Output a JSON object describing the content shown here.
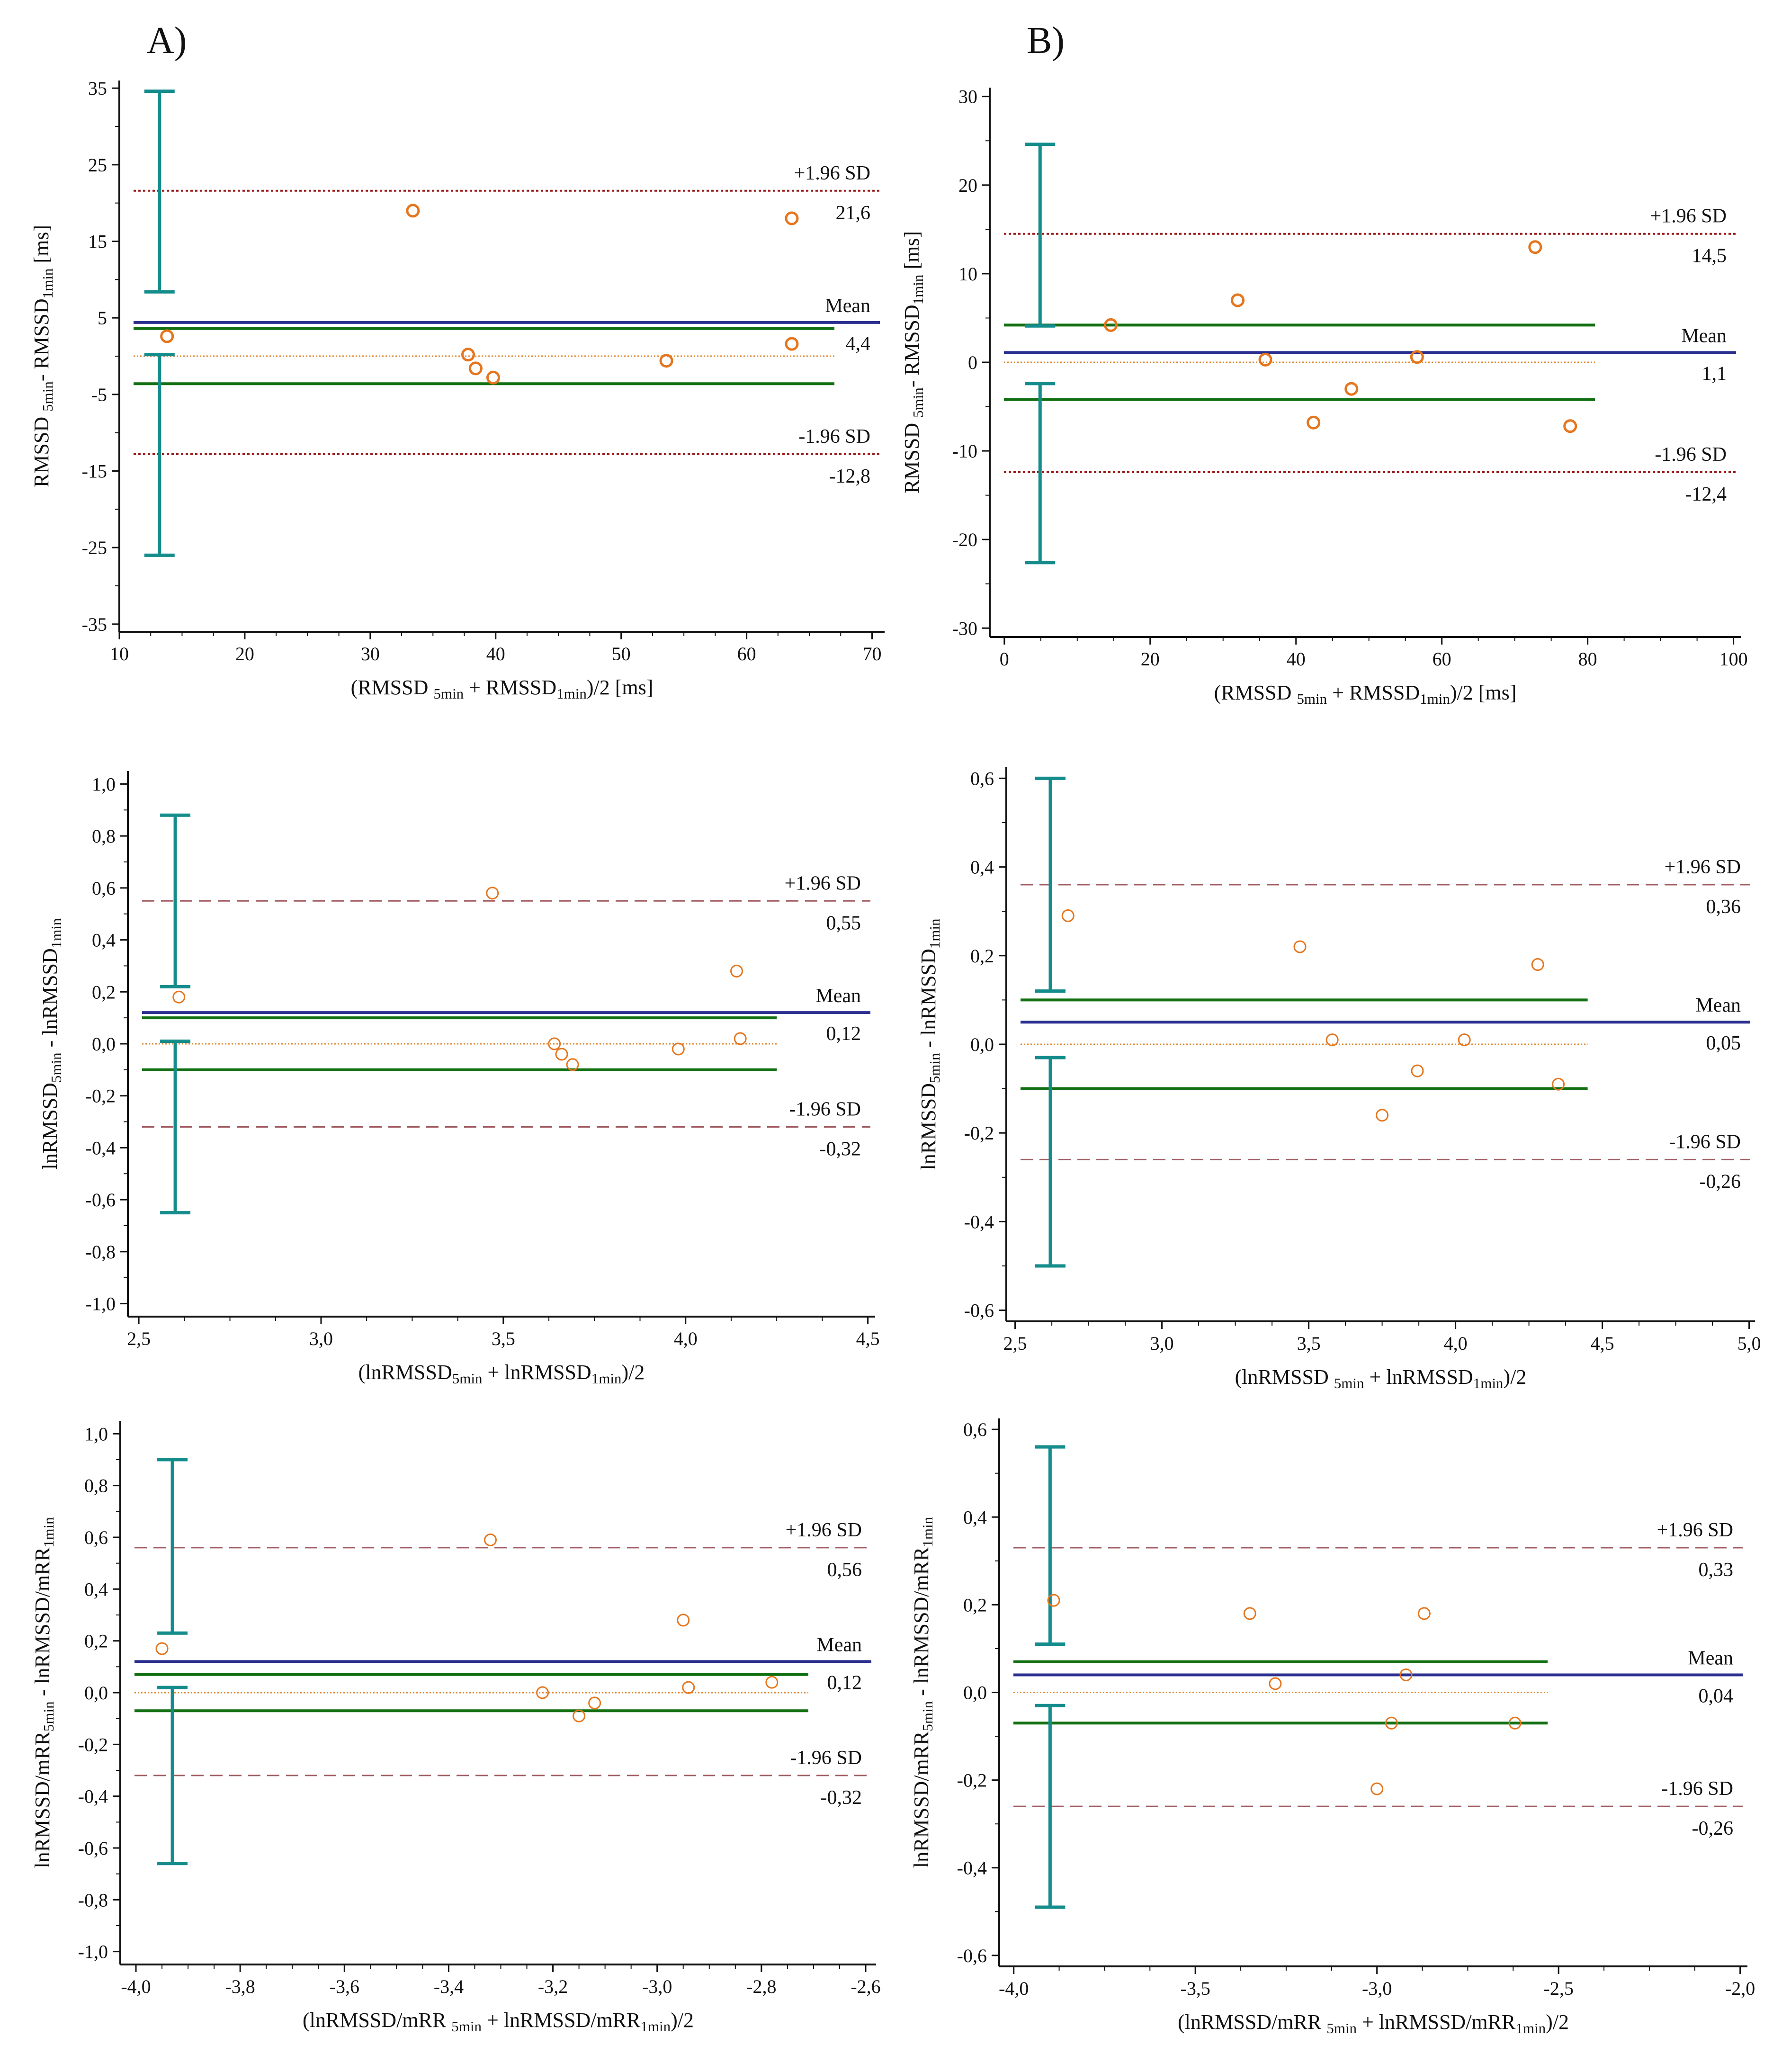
{
  "panel_labels": [
    "A)",
    "B)"
  ],
  "colors": {
    "mean_line": "#2b2f8f",
    "ci_line": "#127012",
    "loa_line": "#9b1b1b",
    "loa_dashed": "#a05c62",
    "zero_line": "#e0872e",
    "points": "#e5761e",
    "errorbar": "#158c8c",
    "axis": "#111111"
  },
  "chart_data": [
    {
      "type": "scatter",
      "title": "A)",
      "xlabel": {
        "pre": "(RMSSD ",
        "s1": "5min",
        "mid": " + RMSSD",
        "s2": "1min",
        "post": ")/2 [ms]"
      },
      "ylabel": {
        "pre": "RMSSD ",
        "s1": "5min",
        "mid": "- RMSSD",
        "s2": "1min",
        "post": " [ms]"
      },
      "xlim": [
        10,
        71
      ],
      "ylim": [
        -36,
        36
      ],
      "xticks": [
        10,
        20,
        30,
        40,
        50,
        60,
        70
      ],
      "xticklabels": [
        "10",
        "20",
        "30",
        "40",
        "50",
        "60",
        "70"
      ],
      "yticks": [
        35,
        25,
        15,
        5,
        -5,
        -15,
        -25,
        -35
      ],
      "yticklabels": [
        "35",
        "25",
        "15",
        "5",
        "-5",
        "-15",
        "-25",
        "-35"
      ],
      "points": [
        [
          13.8,
          2.6
        ],
        [
          33.4,
          19.0
        ],
        [
          37.8,
          0.2
        ],
        [
          38.4,
          -1.6
        ],
        [
          39.8,
          -2.8
        ],
        [
          53.6,
          -0.6
        ],
        [
          63.6,
          1.6
        ],
        [
          63.6,
          18.0
        ]
      ],
      "zero_line": {
        "value": 0,
        "x_end": 67
      },
      "mean": {
        "value": 4.4,
        "label": "Mean",
        "value_label": "4,4"
      },
      "upper_loa": {
        "value": 21.6,
        "label": "+1.96 SD",
        "value_label": "21,6"
      },
      "lower_loa": {
        "value": -12.8,
        "label": "-1.96 SD",
        "value_label": "-12,8"
      },
      "mean_ci": [
        -3.6,
        3.6
      ],
      "ci_x_end": 67,
      "errorbar_x": 13.2,
      "errorbars": [
        [
          8.4,
          34.6
        ],
        [
          -26.0,
          0.2
        ]
      ],
      "loa_style": "dotted"
    },
    {
      "type": "scatter",
      "title": "B)",
      "xlabel": {
        "pre": "(RMSSD ",
        "s1": "5min",
        "mid": " + RMSSD",
        "s2": "1min",
        "post": ")/2 [ms]"
      },
      "ylabel": {
        "pre": "RMSSD ",
        "s1": "5min",
        "mid": "- RMSSD",
        "s2": "1min",
        "post": " [ms]"
      },
      "xlim": [
        -2,
        101
      ],
      "ylim": [
        -31,
        31
      ],
      "xticks": [
        0,
        20,
        40,
        60,
        80,
        100
      ],
      "xticklabels": [
        "0",
        "20",
        "40",
        "60",
        "80",
        "100"
      ],
      "yticks": [
        30,
        20,
        10,
        0,
        -10,
        -20,
        -30
      ],
      "yticklabels": [
        "30",
        "20",
        "10",
        "0",
        "-10",
        "-20",
        "-30"
      ],
      "points": [
        [
          14.6,
          4.2
        ],
        [
          32.0,
          7.0
        ],
        [
          35.8,
          0.3
        ],
        [
          42.4,
          -6.8
        ],
        [
          47.6,
          -3.0
        ],
        [
          56.6,
          0.6
        ],
        [
          72.8,
          13.0
        ],
        [
          77.6,
          -7.2
        ]
      ],
      "zero_line": {
        "value": 0,
        "x_end": 81
      },
      "mean": {
        "value": 1.1,
        "label": "Mean",
        "value_label": "1,1"
      },
      "upper_loa": {
        "value": 14.5,
        "label": "+1.96 SD",
        "value_label": "14,5"
      },
      "lower_loa": {
        "value": -12.4,
        "label": "-1.96 SD",
        "value_label": "-12,4"
      },
      "mean_ci": [
        -4.2,
        4.2
      ],
      "ci_x_end": 81,
      "errorbar_x": 4.9,
      "errorbars": [
        [
          4.1,
          24.6
        ],
        [
          -22.6,
          -2.4
        ]
      ],
      "loa_style": "dotted"
    },
    {
      "type": "scatter",
      "xlabel": {
        "pre": "(lnRMSSD",
        "s1": "5min",
        "mid": " + lnRMSSD",
        "s2": "1min",
        "post": ")/2"
      },
      "ylabel": {
        "pre": "lnRMSSD",
        "s1": "5min",
        "mid": " - lnRMSSD",
        "s2": "1min",
        "post": ""
      },
      "xlim": [
        2.47,
        4.52
      ],
      "ylim": [
        -1.05,
        1.05
      ],
      "xticks": [
        2.5,
        3.0,
        3.5,
        4.0,
        4.5
      ],
      "xticklabels": [
        "2,5",
        "3,0",
        "3,5",
        "4,0",
        "4,5"
      ],
      "yticks": [
        1.0,
        0.8,
        0.6,
        0.4,
        0.2,
        0.0,
        -0.2,
        -0.4,
        -0.6,
        -0.8,
        -1.0
      ],
      "yticklabels": [
        "1,0",
        "0,8",
        "0,6",
        "0,4",
        "0,2",
        "0,0",
        "-0,2",
        "-0,4",
        "-0,6",
        "-0,8",
        "-1,0"
      ],
      "points": [
        [
          2.61,
          0.18
        ],
        [
          3.47,
          0.58
        ],
        [
          3.64,
          0.0
        ],
        [
          3.66,
          -0.04
        ],
        [
          3.69,
          -0.08
        ],
        [
          3.98,
          -0.02
        ],
        [
          4.14,
          0.28
        ],
        [
          4.15,
          0.02
        ]
      ],
      "zero_line": {
        "value": 0,
        "x_end": 4.25
      },
      "mean": {
        "value": 0.12,
        "label": "Mean",
        "value_label": "0,12"
      },
      "upper_loa": {
        "value": 0.55,
        "label": "+1.96 SD",
        "value_label": "0,55"
      },
      "lower_loa": {
        "value": -0.32,
        "label": "-1.96 SD",
        "value_label": "-0,32"
      },
      "mean_ci": [
        -0.1,
        0.1
      ],
      "ci_x_end": 4.25,
      "errorbar_x": 2.6,
      "errorbars": [
        [
          0.22,
          0.88
        ],
        [
          -0.65,
          0.01
        ]
      ],
      "loa_style": "dashed"
    },
    {
      "type": "scatter",
      "xlabel": {
        "pre": "(lnRMSSD ",
        "s1": "5min",
        "mid": " + lnRMSSD",
        "s2": "1min",
        "post": ")/2"
      },
      "ylabel": {
        "pre": "lnRMSSD",
        "s1": "5min",
        "mid": " - lnRMSSD",
        "s2": "1min",
        "post": ""
      },
      "xlim": [
        2.47,
        5.02
      ],
      "ylim": [
        -0.625,
        0.625
      ],
      "xticks": [
        2.5,
        3.0,
        3.5,
        4.0,
        4.5,
        5.0
      ],
      "xticklabels": [
        "2,5",
        "3,0",
        "3,5",
        "4,0",
        "4,5",
        "5,0"
      ],
      "yticks": [
        0.6,
        0.4,
        0.2,
        0.0,
        -0.2,
        -0.4,
        -0.6
      ],
      "yticklabels": [
        "0,6",
        "0,4",
        "0,2",
        "0,0",
        "-0,2",
        "-0,4",
        "-0,6"
      ],
      "points": [
        [
          2.68,
          0.29
        ],
        [
          3.47,
          0.22
        ],
        [
          3.58,
          0.01
        ],
        [
          3.75,
          -0.16
        ],
        [
          3.87,
          -0.06
        ],
        [
          4.03,
          0.01
        ],
        [
          4.28,
          0.18
        ],
        [
          4.35,
          -0.09
        ]
      ],
      "zero_line": {
        "value": 0,
        "x_end": 4.45
      },
      "mean": {
        "value": 0.05,
        "label": "Mean",
        "value_label": "0,05"
      },
      "upper_loa": {
        "value": 0.36,
        "label": "+1.96 SD",
        "value_label": "0,36"
      },
      "lower_loa": {
        "value": -0.26,
        "label": "-1.96 SD",
        "value_label": "-0,26"
      },
      "mean_ci": [
        -0.1,
        0.1
      ],
      "ci_x_end": 4.45,
      "errorbar_x": 2.62,
      "errorbars": [
        [
          0.12,
          0.6
        ],
        [
          -0.5,
          -0.03
        ]
      ],
      "loa_style": "dashed"
    },
    {
      "type": "scatter",
      "xlabel": {
        "pre": "(lnRMSSD/mRR ",
        "s1": "5min",
        "mid": " + lnRMSSD/mRR",
        "s2": "1min",
        "post": ")/2"
      },
      "ylabel": {
        "pre": "lnRMSSD/mRR",
        "s1": "5min",
        "mid": " - lnRMSSD/mRR",
        "s2": "1min",
        "post": ""
      },
      "xlim": [
        -4.03,
        -2.58
      ],
      "ylim": [
        -1.05,
        1.05
      ],
      "xticks": [
        -4.0,
        -3.8,
        -3.6,
        -3.4,
        -3.2,
        -3.0,
        -2.8,
        -2.6
      ],
      "xticklabels": [
        "-4,0",
        "-3,8",
        "-3,6",
        "-3,4",
        "-3,2",
        "-3,0",
        "-2,8",
        "-2,6"
      ],
      "yticks": [
        1.0,
        0.8,
        0.6,
        0.4,
        0.2,
        0.0,
        -0.2,
        -0.4,
        -0.6,
        -0.8,
        -1.0
      ],
      "yticklabels": [
        "1,0",
        "0,8",
        "0,6",
        "0,4",
        "0,2",
        "0,0",
        "-0,2",
        "-0,4",
        "-0,6",
        "-0,8",
        "-1,0"
      ],
      "points": [
        [
          -3.95,
          0.17
        ],
        [
          -3.32,
          0.59
        ],
        [
          -3.22,
          0.0
        ],
        [
          -3.15,
          -0.09
        ],
        [
          -3.12,
          -0.04
        ],
        [
          -2.95,
          0.28
        ],
        [
          -2.94,
          0.02
        ],
        [
          -2.78,
          0.04
        ]
      ],
      "zero_line": {
        "value": 0,
        "x_end": -2.71
      },
      "mean": {
        "value": 0.12,
        "label": "Mean",
        "value_label": "0,12"
      },
      "upper_loa": {
        "value": 0.56,
        "label": "+1.96 SD",
        "value_label": "0,56"
      },
      "lower_loa": {
        "value": -0.32,
        "label": "-1.96 SD",
        "value_label": "-0,32"
      },
      "mean_ci": [
        -0.07,
        0.07
      ],
      "ci_x_end": -2.71,
      "errorbar_x": -3.93,
      "errorbars": [
        [
          0.23,
          0.9
        ],
        [
          -0.66,
          0.02
        ]
      ],
      "loa_style": "dashed"
    },
    {
      "type": "scatter",
      "xlabel": {
        "pre": "(lnRMSSD/mRR ",
        "s1": "5min",
        "mid": " + lnRMSSD/mRR",
        "s2": "1min",
        "post": ")/2"
      },
      "ylabel": {
        "pre": "lnRMSSD/mRR",
        "s1": "5min",
        "mid": " - lnRMSSD/mRR",
        "s2": "1min",
        "post": ""
      },
      "xlim": [
        -4.04,
        -1.98
      ],
      "ylim": [
        -0.625,
        0.625
      ],
      "xticks": [
        -4.0,
        -3.5,
        -3.0,
        -2.5,
        -2.0
      ],
      "xticklabels": [
        "-4,0",
        "-3,5",
        "-3,0",
        "-2,5",
        "-2,0"
      ],
      "yticks": [
        0.6,
        0.4,
        0.2,
        0.0,
        -0.2,
        -0.4,
        -0.6
      ],
      "yticklabels": [
        "0,6",
        "0,4",
        "0,2",
        "0,0",
        "-0,2",
        "-0,4",
        "-0,6"
      ],
      "points": [
        [
          -3.89,
          0.21
        ],
        [
          -3.35,
          0.18
        ],
        [
          -3.28,
          0.02
        ],
        [
          -3.0,
          -0.22
        ],
        [
          -2.96,
          -0.07
        ],
        [
          -2.92,
          0.04
        ],
        [
          -2.87,
          0.18
        ],
        [
          -2.62,
          -0.07
        ]
      ],
      "zero_line": {
        "value": 0,
        "x_end": -2.53
      },
      "mean": {
        "value": 0.04,
        "label": "Mean",
        "value_label": "0,04"
      },
      "upper_loa": {
        "value": 0.33,
        "label": "+1.96 SD",
        "value_label": "0,33"
      },
      "lower_loa": {
        "value": -0.26,
        "label": "-1.96 SD",
        "value_label": "-0,26"
      },
      "mean_ci": [
        -0.07,
        0.07
      ],
      "ci_x_end": -2.53,
      "errorbar_x": -3.9,
      "errorbars": [
        [
          0.11,
          0.56
        ],
        [
          -0.49,
          -0.03
        ]
      ],
      "loa_style": "dashed"
    }
  ]
}
